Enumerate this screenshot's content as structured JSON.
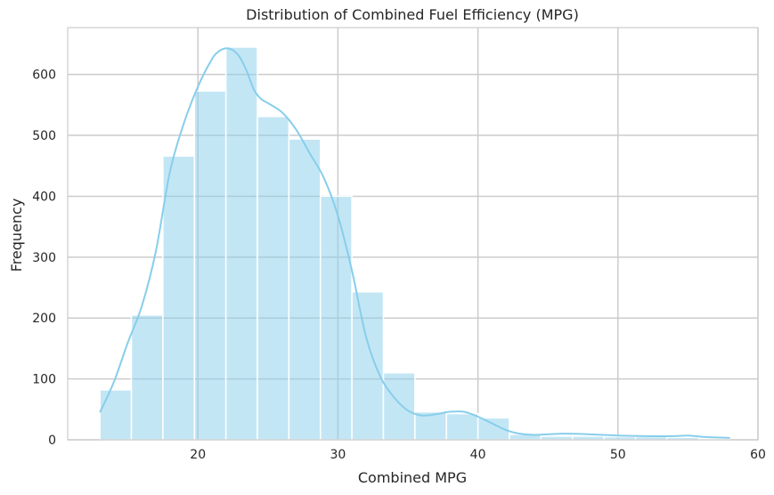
{
  "chart_data": {
    "type": "bar",
    "title": "Distribution of Combined Fuel Efficiency (MPG)",
    "xlabel": "Combined MPG",
    "ylabel": "Frequency",
    "xlim": [
      10.7,
      60.0
    ],
    "ylim": [
      0,
      677
    ],
    "xticks": [
      20,
      30,
      40,
      50,
      60
    ],
    "yticks": [
      0,
      100,
      200,
      300,
      400,
      500,
      600
    ],
    "grid": true,
    "bin_edges": [
      13.0,
      15.25,
      17.5,
      19.75,
      22.0,
      24.25,
      26.5,
      28.75,
      31.0,
      33.25,
      35.5,
      37.75,
      40.0,
      42.25,
      44.5,
      46.75,
      49.0,
      51.25,
      53.5,
      55.75,
      58.0
    ],
    "values": [
      82,
      205,
      466,
      573,
      645,
      531,
      494,
      400,
      243,
      110,
      46,
      43,
      36,
      9,
      6,
      6,
      5,
      5,
      4,
      2
    ],
    "kde": {
      "x": [
        13.0,
        14.0,
        15.0,
        16.0,
        17.0,
        18.0,
        19.0,
        20.0,
        21.0,
        21.5,
        22.0,
        22.5,
        23.0,
        23.5,
        24.0,
        24.5,
        25.0,
        26.0,
        27.0,
        28.0,
        29.0,
        30.0,
        31.0,
        32.0,
        33.0,
        34.0,
        35.0,
        36.0,
        37.0,
        38.0,
        39.0,
        40.0,
        41.0,
        42.0,
        43.0,
        44.0,
        46.0,
        48.0,
        50.0,
        52.0,
        54.0,
        55.0,
        56.0,
        58.0
      ],
      "y": [
        45,
        95,
        160,
        220,
        310,
        440,
        520,
        580,
        625,
        638,
        643,
        640,
        628,
        605,
        575,
        560,
        553,
        538,
        510,
        470,
        430,
        368,
        278,
        170,
        105,
        70,
        48,
        40,
        42,
        46,
        46,
        38,
        27,
        16,
        10,
        8,
        10,
        9,
        7,
        6,
        6,
        7,
        5,
        3
      ]
    },
    "bar_color": "#87CEEB",
    "line_color": "#87CEEB"
  }
}
